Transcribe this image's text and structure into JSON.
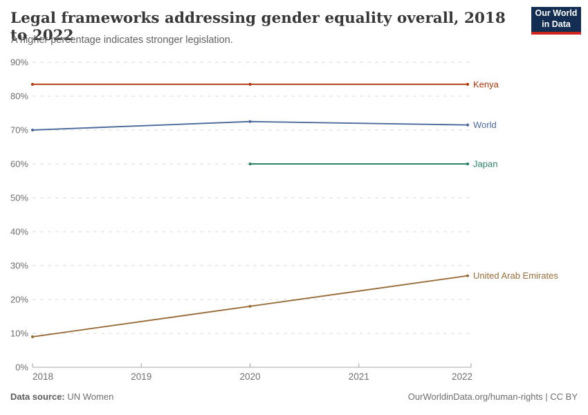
{
  "header": {
    "title": "Legal frameworks addressing gender equality overall, 2018 to 2022",
    "subtitle": "A higher percentage indicates stronger legislation.",
    "logo": {
      "line1": "Our World",
      "line2": "in Data",
      "bg_color": "#132e52",
      "accent_color": "#ce261e"
    }
  },
  "chart_data": {
    "type": "line",
    "title": "Legal frameworks addressing gender equality overall, 2018 to 2022",
    "subtitle": "A higher percentage indicates stronger legislation.",
    "xlabel": "",
    "ylabel": "",
    "x_ticks": [
      2018,
      2019,
      2020,
      2021,
      2022
    ],
    "y_ticks": [
      "0%",
      "10%",
      "20%",
      "30%",
      "40%",
      "50%",
      "60%",
      "70%",
      "80%",
      "90%"
    ],
    "xlim": [
      2018,
      2022
    ],
    "ylim": [
      0,
      90
    ],
    "grid": "horizontal-dashed",
    "legend_position": "end-of-line-labels-right",
    "series": [
      {
        "name": "Kenya",
        "color": "#B13507",
        "x": [
          2018,
          2020,
          2022
        ],
        "values": [
          83.5,
          83.5,
          83.5
        ]
      },
      {
        "name": "World",
        "color": "#4C6A9C",
        "x": [
          2018,
          2020,
          2022
        ],
        "values": [
          70,
          72.5,
          71.5
        ]
      },
      {
        "name": "Japan",
        "color": "#2C8465",
        "x": [
          2020,
          2022
        ],
        "values": [
          60,
          60
        ]
      },
      {
        "name": "United Arab Emirates",
        "color": "#996D39",
        "x": [
          2018,
          2020,
          2022
        ],
        "values": [
          9,
          18,
          27
        ]
      }
    ]
  },
  "footer": {
    "source_label": "Data source:",
    "source_value": "UN Women",
    "link": "OurWorldinData.org/human-rights",
    "separator": "|",
    "license": "CC BY"
  }
}
